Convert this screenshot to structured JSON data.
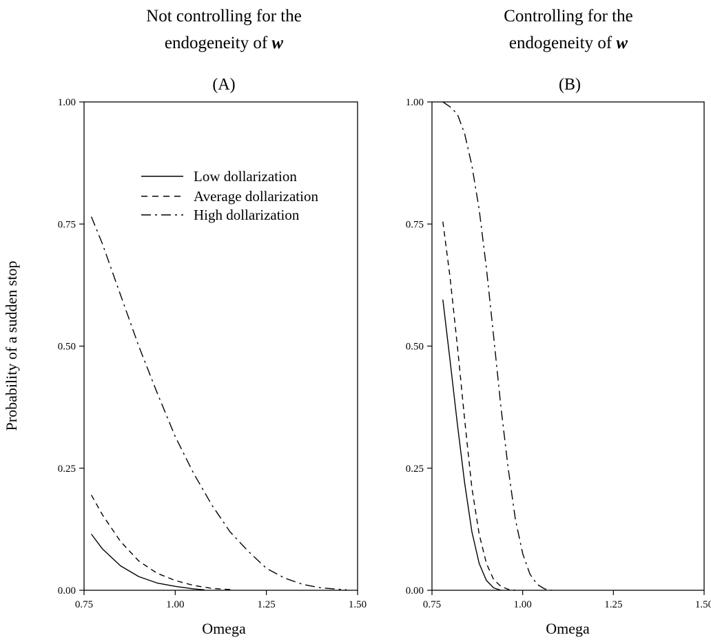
{
  "figure": {
    "panels": [
      {
        "title_line1": "Not controlling for the",
        "title_line2_prefix": "endogeneity of ",
        "title_variable": "w",
        "label": "(A)"
      },
      {
        "title_line1": "Controlling for the",
        "title_line2_prefix": "endogeneity of ",
        "title_variable": "w",
        "label": "(B)"
      }
    ],
    "y_axis_title": "Probability of a sudden stop",
    "x_axis_title": "Omega",
    "legend": [
      "Low dollarization",
      "Average dollarization",
      "High dollarization"
    ],
    "x_ticks": [
      "0.75",
      "1.00",
      "1.25",
      "1.50"
    ],
    "y_ticks": [
      "0.00",
      "0.25",
      "0.50",
      "0.75",
      "1.00"
    ]
  },
  "chart_data": [
    {
      "type": "line",
      "title": "(A)",
      "xlabel": "Omega",
      "ylabel": "Probability of a sudden stop",
      "xlim": [
        0.75,
        1.5
      ],
      "ylim": [
        0,
        1
      ],
      "x_ticks": [
        0.75,
        1.0,
        1.25,
        1.5
      ],
      "y_ticks": [
        0.0,
        0.25,
        0.5,
        0.75,
        1.0
      ],
      "legend_position": "top-right",
      "series": [
        {
          "name": "Low dollarization",
          "style": "solid",
          "x": [
            0.77,
            0.8,
            0.85,
            0.9,
            0.95,
            1.0,
            1.05,
            1.08
          ],
          "y": [
            0.115,
            0.085,
            0.05,
            0.028,
            0.015,
            0.008,
            0.003,
            0.001
          ]
        },
        {
          "name": "Average dollarization",
          "style": "dashed",
          "x": [
            0.77,
            0.8,
            0.85,
            0.9,
            0.95,
            1.0,
            1.05,
            1.1,
            1.16
          ],
          "y": [
            0.195,
            0.155,
            0.1,
            0.06,
            0.035,
            0.02,
            0.01,
            0.004,
            0.001
          ]
        },
        {
          "name": "High dollarization",
          "style": "dashdot",
          "x": [
            0.77,
            0.8,
            0.85,
            0.9,
            0.95,
            1.0,
            1.05,
            1.1,
            1.15,
            1.2,
            1.25,
            1.3,
            1.35,
            1.4,
            1.45,
            1.47
          ],
          "y": [
            0.765,
            0.71,
            0.605,
            0.5,
            0.405,
            0.315,
            0.24,
            0.175,
            0.12,
            0.08,
            0.045,
            0.025,
            0.012,
            0.005,
            0.002,
            0.001
          ]
        }
      ]
    },
    {
      "type": "line",
      "title": "(B)",
      "xlabel": "Omega",
      "ylabel": "",
      "xlim": [
        0.75,
        1.5
      ],
      "ylim": [
        0,
        1
      ],
      "x_ticks": [
        0.75,
        1.0,
        1.25,
        1.5
      ],
      "y_ticks": [
        0.0,
        0.25,
        0.5,
        0.75,
        1.0
      ],
      "series": [
        {
          "name": "Low dollarization",
          "style": "solid",
          "x": [
            0.78,
            0.8,
            0.82,
            0.84,
            0.86,
            0.88,
            0.9,
            0.92,
            0.94
          ],
          "y": [
            0.595,
            0.47,
            0.34,
            0.22,
            0.12,
            0.055,
            0.02,
            0.005,
            0.0
          ]
        },
        {
          "name": "Average dollarization",
          "style": "dashed",
          "x": [
            0.78,
            0.8,
            0.82,
            0.84,
            0.86,
            0.88,
            0.9,
            0.92,
            0.94,
            0.96,
            0.98
          ],
          "y": [
            0.755,
            0.64,
            0.5,
            0.35,
            0.21,
            0.115,
            0.055,
            0.022,
            0.008,
            0.002,
            0.0
          ]
        },
        {
          "name": "High dollarization",
          "style": "dashdot",
          "x": [
            0.78,
            0.8,
            0.82,
            0.84,
            0.86,
            0.88,
            0.9,
            0.92,
            0.94,
            0.96,
            0.98,
            1.0,
            1.02,
            1.04,
            1.06,
            1.08
          ],
          "y": [
            1.0,
            0.99,
            0.975,
            0.935,
            0.87,
            0.78,
            0.66,
            0.52,
            0.375,
            0.25,
            0.145,
            0.075,
            0.033,
            0.012,
            0.003,
            0.0
          ]
        }
      ]
    }
  ]
}
